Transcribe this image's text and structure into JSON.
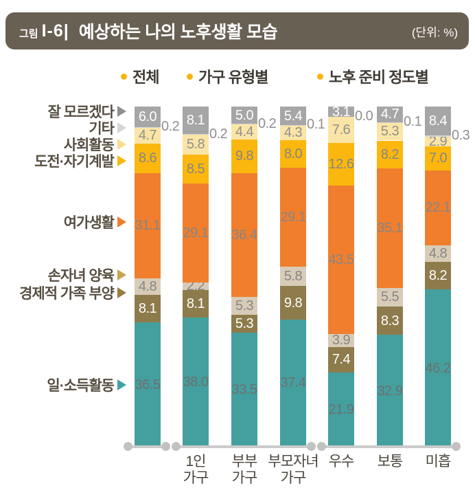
{
  "header": {
    "tag": "그림",
    "code": "I-6|",
    "title": "예상하는 나의 노후생활 모습",
    "unit": "(단위: %)"
  },
  "legend": {
    "bullet_color": "#fbb40d",
    "items": [
      {
        "label": "전체"
      },
      {
        "label": "가구 유형별"
      },
      {
        "label": "노후 준비 정도별"
      }
    ]
  },
  "chart_data": {
    "type": "bar",
    "stacked": true,
    "unit": "%",
    "title": "예상하는 나의 노후생활 모습",
    "ylim": [
      0,
      100
    ],
    "grid": false,
    "categories": [
      "전체",
      "1인 가구",
      "부부 가구",
      "부모자녀 가구",
      "우수",
      "보통",
      "미흡"
    ],
    "groups": [
      {
        "label": "전체",
        "cols": [
          0
        ]
      },
      {
        "label": "가구 유형별",
        "cols": [
          1,
          2,
          3
        ]
      },
      {
        "label": "노후 준비 정도별",
        "cols": [
          4,
          5,
          6
        ]
      }
    ],
    "x_ticks": [
      {
        "col": 1,
        "lines": [
          "1인",
          "가구"
        ]
      },
      {
        "col": 2,
        "lines": [
          "부부",
          "가구"
        ]
      },
      {
        "col": 3,
        "lines": [
          "부모자녀",
          "가구"
        ]
      },
      {
        "col": 4,
        "lines": [
          "우수"
        ]
      },
      {
        "col": 5,
        "lines": [
          "보통"
        ]
      },
      {
        "col": 6,
        "lines": [
          "미흡"
        ]
      }
    ],
    "series": [
      {
        "name": "일·소득활동",
        "color": "#43a09f",
        "text_color": "#6f6f6f",
        "values": [
          36.5,
          38.0,
          33.5,
          37.4,
          21.9,
          32.9,
          46.2
        ]
      },
      {
        "name": "경제적 가족 부양",
        "color": "#8e7b4b",
        "text_color": "#ffffff",
        "values": [
          8.1,
          8.1,
          5.3,
          9.8,
          7.4,
          8.3,
          8.2
        ]
      },
      {
        "name": "손자녀 양육",
        "color": "#d8ccb8",
        "text_color": "#868686",
        "values": [
          4.8,
          2.2,
          5.3,
          5.8,
          3.9,
          5.5,
          4.8
        ]
      },
      {
        "name": "여가생활",
        "color": "#f07e2d",
        "text_color": "#868686",
        "values": [
          31.1,
          29.1,
          36.4,
          29.1,
          43.5,
          35.1,
          22.1
        ]
      },
      {
        "name": "도전·자기계발",
        "color": "#fbb70e",
        "text_color": "#868686",
        "values": [
          8.6,
          8.5,
          9.8,
          8.0,
          12.6,
          8.2,
          7.0
        ]
      },
      {
        "name": "사회활동",
        "color": "#fbe5a6",
        "text_color": "#8f8f8f",
        "values": [
          4.7,
          5.8,
          4.4,
          4.3,
          7.6,
          5.3,
          2.9
        ]
      },
      {
        "name": "기타",
        "color": "#d6d6d6",
        "text_color": "#8f8f8f",
        "label_outside": true,
        "values": [
          0.2,
          0.2,
          0.2,
          0.1,
          0.0,
          0.1,
          0.3
        ]
      },
      {
        "name": "잘 모르겠다",
        "color": "#a6a6a6",
        "text_color": "#ffffff",
        "values": [
          6.0,
          8.1,
          5.0,
          5.4,
          3.1,
          4.7,
          8.4
        ]
      }
    ],
    "row_labels": [
      {
        "label": "잘 모르겠다",
        "arrow_color": "#8f8f8f"
      },
      {
        "label": "기타",
        "arrow_color": "#d6d6d6"
      },
      {
        "label": "사회활동",
        "arrow_color": "#fbdc8c"
      },
      {
        "label": "도전·자기계발",
        "arrow_color": "#fbb70e"
      },
      {
        "label": "여가생활",
        "arrow_color": "#f07e2d"
      },
      {
        "label": "손자녀 양육",
        "arrow_color": "#c9a34e"
      },
      {
        "label": "경제적 가족 부양",
        "arrow_color": "#9a7d3d"
      },
      {
        "label": "일·소득활동",
        "arrow_color": "#3fa3a3"
      }
    ]
  }
}
